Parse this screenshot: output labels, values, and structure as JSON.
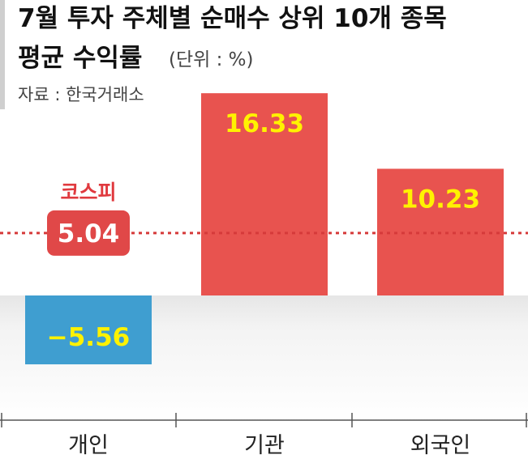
{
  "chart_data": {
    "type": "bar",
    "title_line1": "7월 투자 주체별 순매수 상위 10개 종목",
    "title_line2": "평균 수익률",
    "unit": "(단위 : %)",
    "source": "자료 : 한국거래소",
    "categories": [
      "개인",
      "기관",
      "외국인"
    ],
    "values": [
      -5.56,
      16.33,
      10.23
    ],
    "value_labels": [
      "−5.56",
      "16.33",
      "10.23"
    ],
    "reference": {
      "label": "코스피",
      "value": 5.04,
      "value_label": "5.04"
    },
    "ylim": [
      -10,
      17
    ],
    "grid": false,
    "colors": {
      "positive": "#e8534f",
      "negative": "#3f9ed0",
      "bar_label": "#fff200",
      "reference_line": "#d63a3a",
      "reference_badge": "#e04848",
      "reference_text": "#e0393e",
      "title": "#111111",
      "subtitle": "#444444",
      "axis_text": "#222222",
      "negative_area": "#f4f4f4"
    }
  }
}
